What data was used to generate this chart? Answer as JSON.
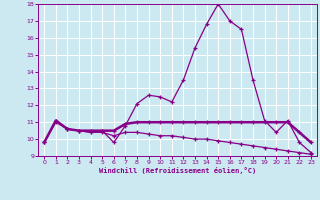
{
  "xlabel": "Windchill (Refroidissement éolien,°C)",
  "background_color": "#cce8f0",
  "line_color": "#880088",
  "x_values": [
    0,
    1,
    2,
    3,
    4,
    5,
    6,
    7,
    8,
    9,
    10,
    11,
    12,
    13,
    14,
    15,
    16,
    17,
    18,
    19,
    20,
    21,
    22,
    23
  ],
  "line1": [
    9.8,
    11.1,
    10.6,
    10.5,
    10.4,
    10.5,
    9.8,
    10.8,
    12.1,
    12.6,
    12.5,
    12.2,
    13.5,
    15.4,
    16.8,
    18.0,
    17.0,
    16.5,
    13.5,
    11.1,
    10.4,
    11.1,
    9.8,
    9.2
  ],
  "line2": [
    9.8,
    11.1,
    10.6,
    10.5,
    10.5,
    10.5,
    10.5,
    10.9,
    11.0,
    11.0,
    11.0,
    11.0,
    11.0,
    11.0,
    11.0,
    11.0,
    11.0,
    11.0,
    11.0,
    11.0,
    11.0,
    11.0,
    10.4,
    9.8
  ],
  "line3": [
    9.8,
    11.0,
    10.6,
    10.5,
    10.4,
    10.4,
    10.2,
    10.4,
    10.4,
    10.3,
    10.2,
    10.2,
    10.1,
    10.0,
    10.0,
    9.9,
    9.8,
    9.7,
    9.6,
    9.5,
    9.4,
    9.3,
    9.2,
    9.1
  ],
  "ylim": [
    9,
    18
  ],
  "yticks": [
    9,
    10,
    11,
    12,
    13,
    14,
    15,
    16,
    17,
    18
  ],
  "xlim": [
    -0.5,
    23.5
  ],
  "xticks": [
    0,
    1,
    2,
    3,
    4,
    5,
    6,
    7,
    8,
    9,
    10,
    11,
    12,
    13,
    14,
    15,
    16,
    17,
    18,
    19,
    20,
    21,
    22,
    23
  ]
}
